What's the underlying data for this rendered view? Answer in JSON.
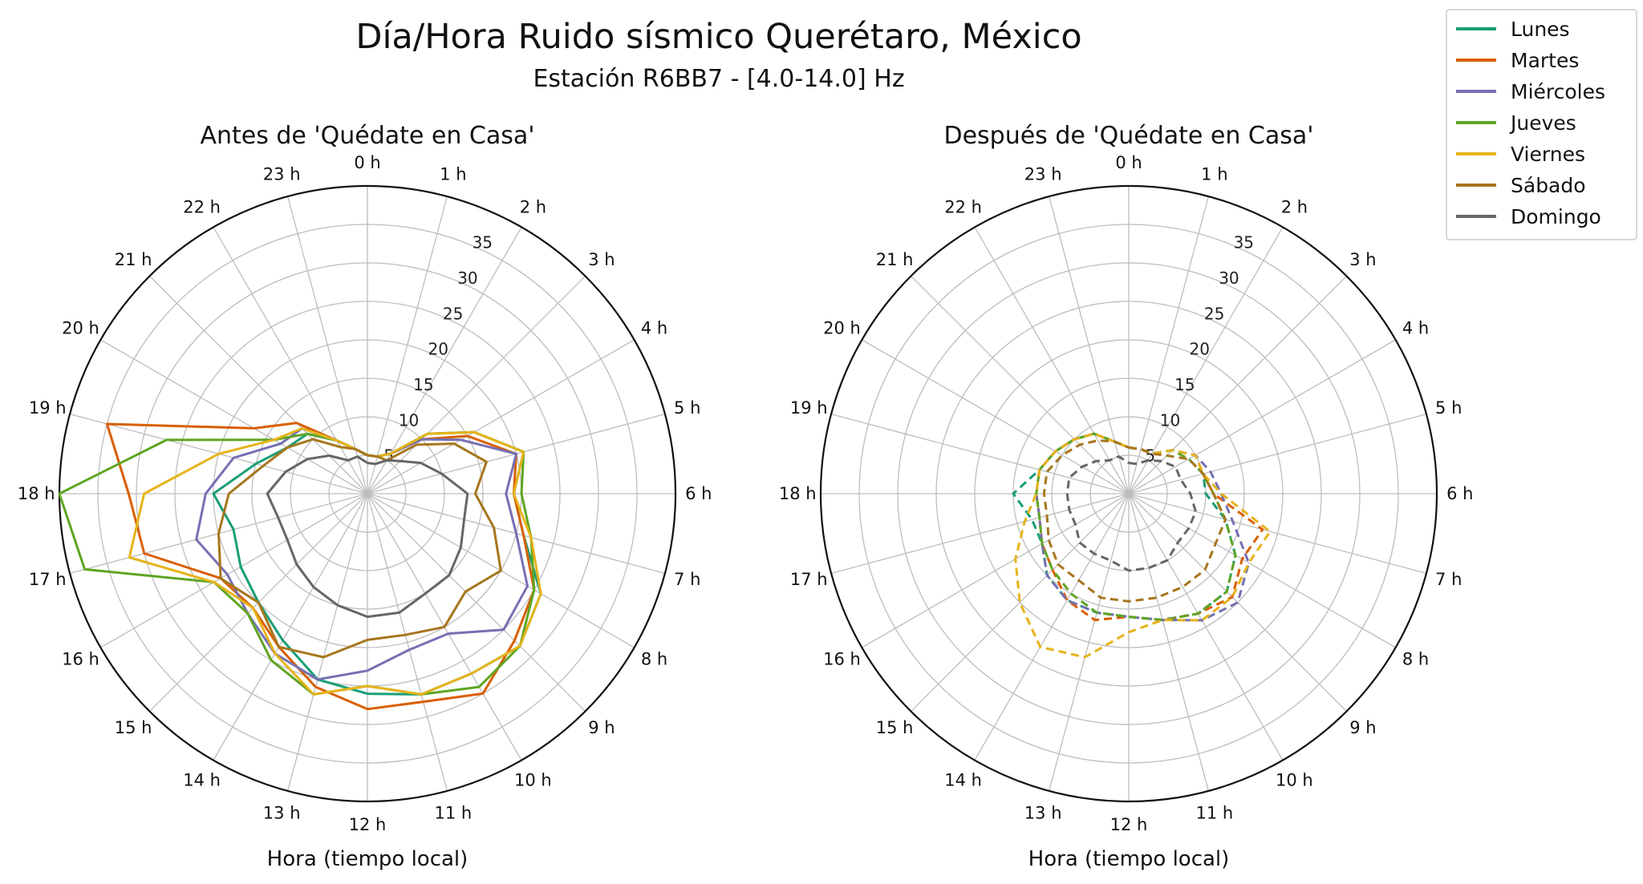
{
  "chart_data": {
    "title": "Día/Hora Ruido sísmico Querétaro, México",
    "subtitle": "Estación R6BB7 - [4.0-14.0] Hz",
    "legend": [
      {
        "name": "Lunes",
        "color": "#1a9e77"
      },
      {
        "name": "Martes",
        "color": "#d95f02"
      },
      {
        "name": "Miércoles",
        "color": "#7570b3"
      },
      {
        "name": "Jueves",
        "color": "#5fa524"
      },
      {
        "name": "Viernes",
        "color": "#e6b31a"
      },
      {
        "name": "Sábado",
        "color": "#a6761d"
      },
      {
        "name": "Domingo",
        "color": "#666666"
      }
    ],
    "legend_placement": "top-right",
    "panels": [
      {
        "type": "line",
        "polar": true,
        "title": "Antes de 'Quédate en Casa'",
        "xlabel": "Hora (tiempo local)",
        "line_style": "solid",
        "theta_labels": [
          "0 h",
          "1 h",
          "2 h",
          "3 h",
          "4 h",
          "5 h",
          "6 h",
          "7 h",
          "8 h",
          "9 h",
          "10 h",
          "11 h",
          "12 h",
          "13 h",
          "14 h",
          "15 h",
          "16 h",
          "17 h",
          "18 h",
          "19 h",
          "20 h",
          "21 h",
          "22 h",
          "23 h"
        ],
        "r_ticks": [
          5,
          10,
          15,
          20,
          25,
          30,
          35
        ],
        "rlim": [
          0,
          40
        ],
        "grid": true,
        "x": [
          0,
          1,
          2,
          3,
          4,
          5,
          6,
          7,
          8,
          9,
          10,
          11,
          12,
          13,
          14,
          15,
          16,
          17,
          18,
          19,
          20,
          21,
          22,
          23
        ],
        "series": [
          {
            "name": "Lunes",
            "values": [
              5,
              5,
              6,
              11,
              16,
              21,
              19,
              21,
              26,
              28,
              27,
              27,
              26,
              25,
              22,
              20,
              19,
              18,
              20,
              15,
              12,
              11,
              8,
              6
            ]
          },
          {
            "name": "Martes",
            "values": [
              5,
              5,
              6,
              10,
              15,
              20,
              19,
              21,
              25,
              27,
              30,
              28,
              28,
              26,
              23,
              21,
              22,
              30,
              31,
              35,
              17,
              13,
              8,
              6
            ]
          },
          {
            "name": "Miércoles",
            "values": [
              5,
              5,
              6,
              10,
              14,
              20,
              18,
              20,
              24,
              25,
              21,
              21,
              23,
              25,
              24,
              22,
              21,
              23,
              21,
              18,
              13,
              12,
              8,
              6
            ]
          },
          {
            "name": "Jueves",
            "values": [
              5,
              5,
              6,
              11,
              16,
              21,
              20,
              22,
              25,
              28,
              29,
              27,
              25,
              27,
              25,
              22,
              23,
              38,
              40,
              27,
              14,
              11,
              8,
              6
            ]
          },
          {
            "name": "Viernes",
            "values": [
              5,
              5,
              6,
              11,
              16,
              21,
              19,
              22,
              26,
              28,
              27,
              27,
              25,
              27,
              24,
              21,
              23,
              32,
              29,
              20,
              14,
              12,
              8,
              6
            ]
          },
          {
            "name": "Sábado",
            "values": [
              5,
              5,
              5,
              9,
              13,
              16,
              14,
              17,
              20,
              18,
              20,
              19,
              19,
              22,
              23,
              20,
              22,
              20,
              18,
              14,
              12,
              10,
              7,
              6
            ]
          },
          {
            "name": "Domingo",
            "values": [
              4,
              4,
              5,
              6,
              8,
              10,
              13,
              13,
              14,
              15,
              15,
              16,
              16,
              15,
              14,
              13,
              12,
              12,
              13,
              11,
              9,
              7,
              5,
              5
            ]
          }
        ]
      },
      {
        "type": "line",
        "polar": true,
        "title": "Después de 'Quédate en Casa'",
        "xlabel": "Hora (tiempo local)",
        "line_style": "dashed",
        "theta_labels": [
          "0 h",
          "1 h",
          "2 h",
          "3 h",
          "4 h",
          "5 h",
          "6 h",
          "7 h",
          "8 h",
          "9 h",
          "10 h",
          "11 h",
          "12 h",
          "13 h",
          "14 h",
          "15 h",
          "16 h",
          "17 h",
          "18 h",
          "19 h",
          "20 h",
          "21 h",
          "22 h",
          "23 h"
        ],
        "r_ticks": [
          5,
          10,
          15,
          20,
          25,
          30,
          35
        ],
        "rlim": [
          0,
          40
        ],
        "grid": true,
        "x": [
          0,
          1,
          2,
          3,
          4,
          5,
          6,
          7,
          8,
          9,
          10,
          11,
          12,
          13,
          14,
          15,
          16,
          17,
          18,
          19,
          20,
          21,
          22,
          23
        ],
        "series": [
          {
            "name": "Lunes",
            "values": [
              6,
              6,
              6,
              8,
              9,
              10,
              10,
              13,
              16,
              18,
              18,
              17,
              16,
              16,
              16,
              15,
              13,
              13,
              15,
              12,
              11,
              10,
              9,
              7
            ]
          },
          {
            "name": "Martes",
            "values": [
              6,
              6,
              6,
              8,
              10,
              10,
              11,
              18,
              17,
              19,
              18,
              17,
              16,
              17,
              16,
              14,
              13,
              12,
              12,
              12,
              11,
              10,
              9,
              7
            ]
          },
          {
            "name": "Miércoles",
            "values": [
              6,
              6,
              6,
              8,
              10,
              11,
              12,
              14,
              18,
              20,
              19,
              17,
              16,
              16,
              16,
              15,
              13,
              12,
              12,
              12,
              11,
              10,
              9,
              7
            ]
          },
          {
            "name": "Jueves",
            "values": [
              6,
              6,
              6,
              8,
              9,
              10,
              11,
              13,
              16,
              18,
              18,
              17,
              16,
              16,
              15,
              14,
              13,
              12,
              12,
              12,
              11,
              10,
              9,
              7
            ]
          },
          {
            "name": "Viernes",
            "values": [
              6,
              6,
              6,
              8,
              10,
              10,
              12,
              19,
              18,
              19,
              19,
              17,
              18,
              22,
              23,
              20,
              17,
              14,
              12,
              12,
              11,
              10,
              9,
              7
            ]
          },
          {
            "name": "Sábado",
            "values": [
              6,
              6,
              6,
              7,
              9,
              10,
              11,
              13,
              13,
              14,
              14,
              14,
              14,
              14,
              13,
              13,
              12,
              11,
              11,
              11,
              10,
              9,
              8,
              7
            ]
          },
          {
            "name": "Domingo",
            "values": [
              4,
              4,
              5,
              6,
              7,
              7,
              8,
              9,
              9,
              9,
              10,
              10,
              10,
              9,
              9,
              9,
              8,
              8,
              8,
              8,
              7,
              6,
              5,
              5
            ]
          }
        ]
      }
    ]
  }
}
